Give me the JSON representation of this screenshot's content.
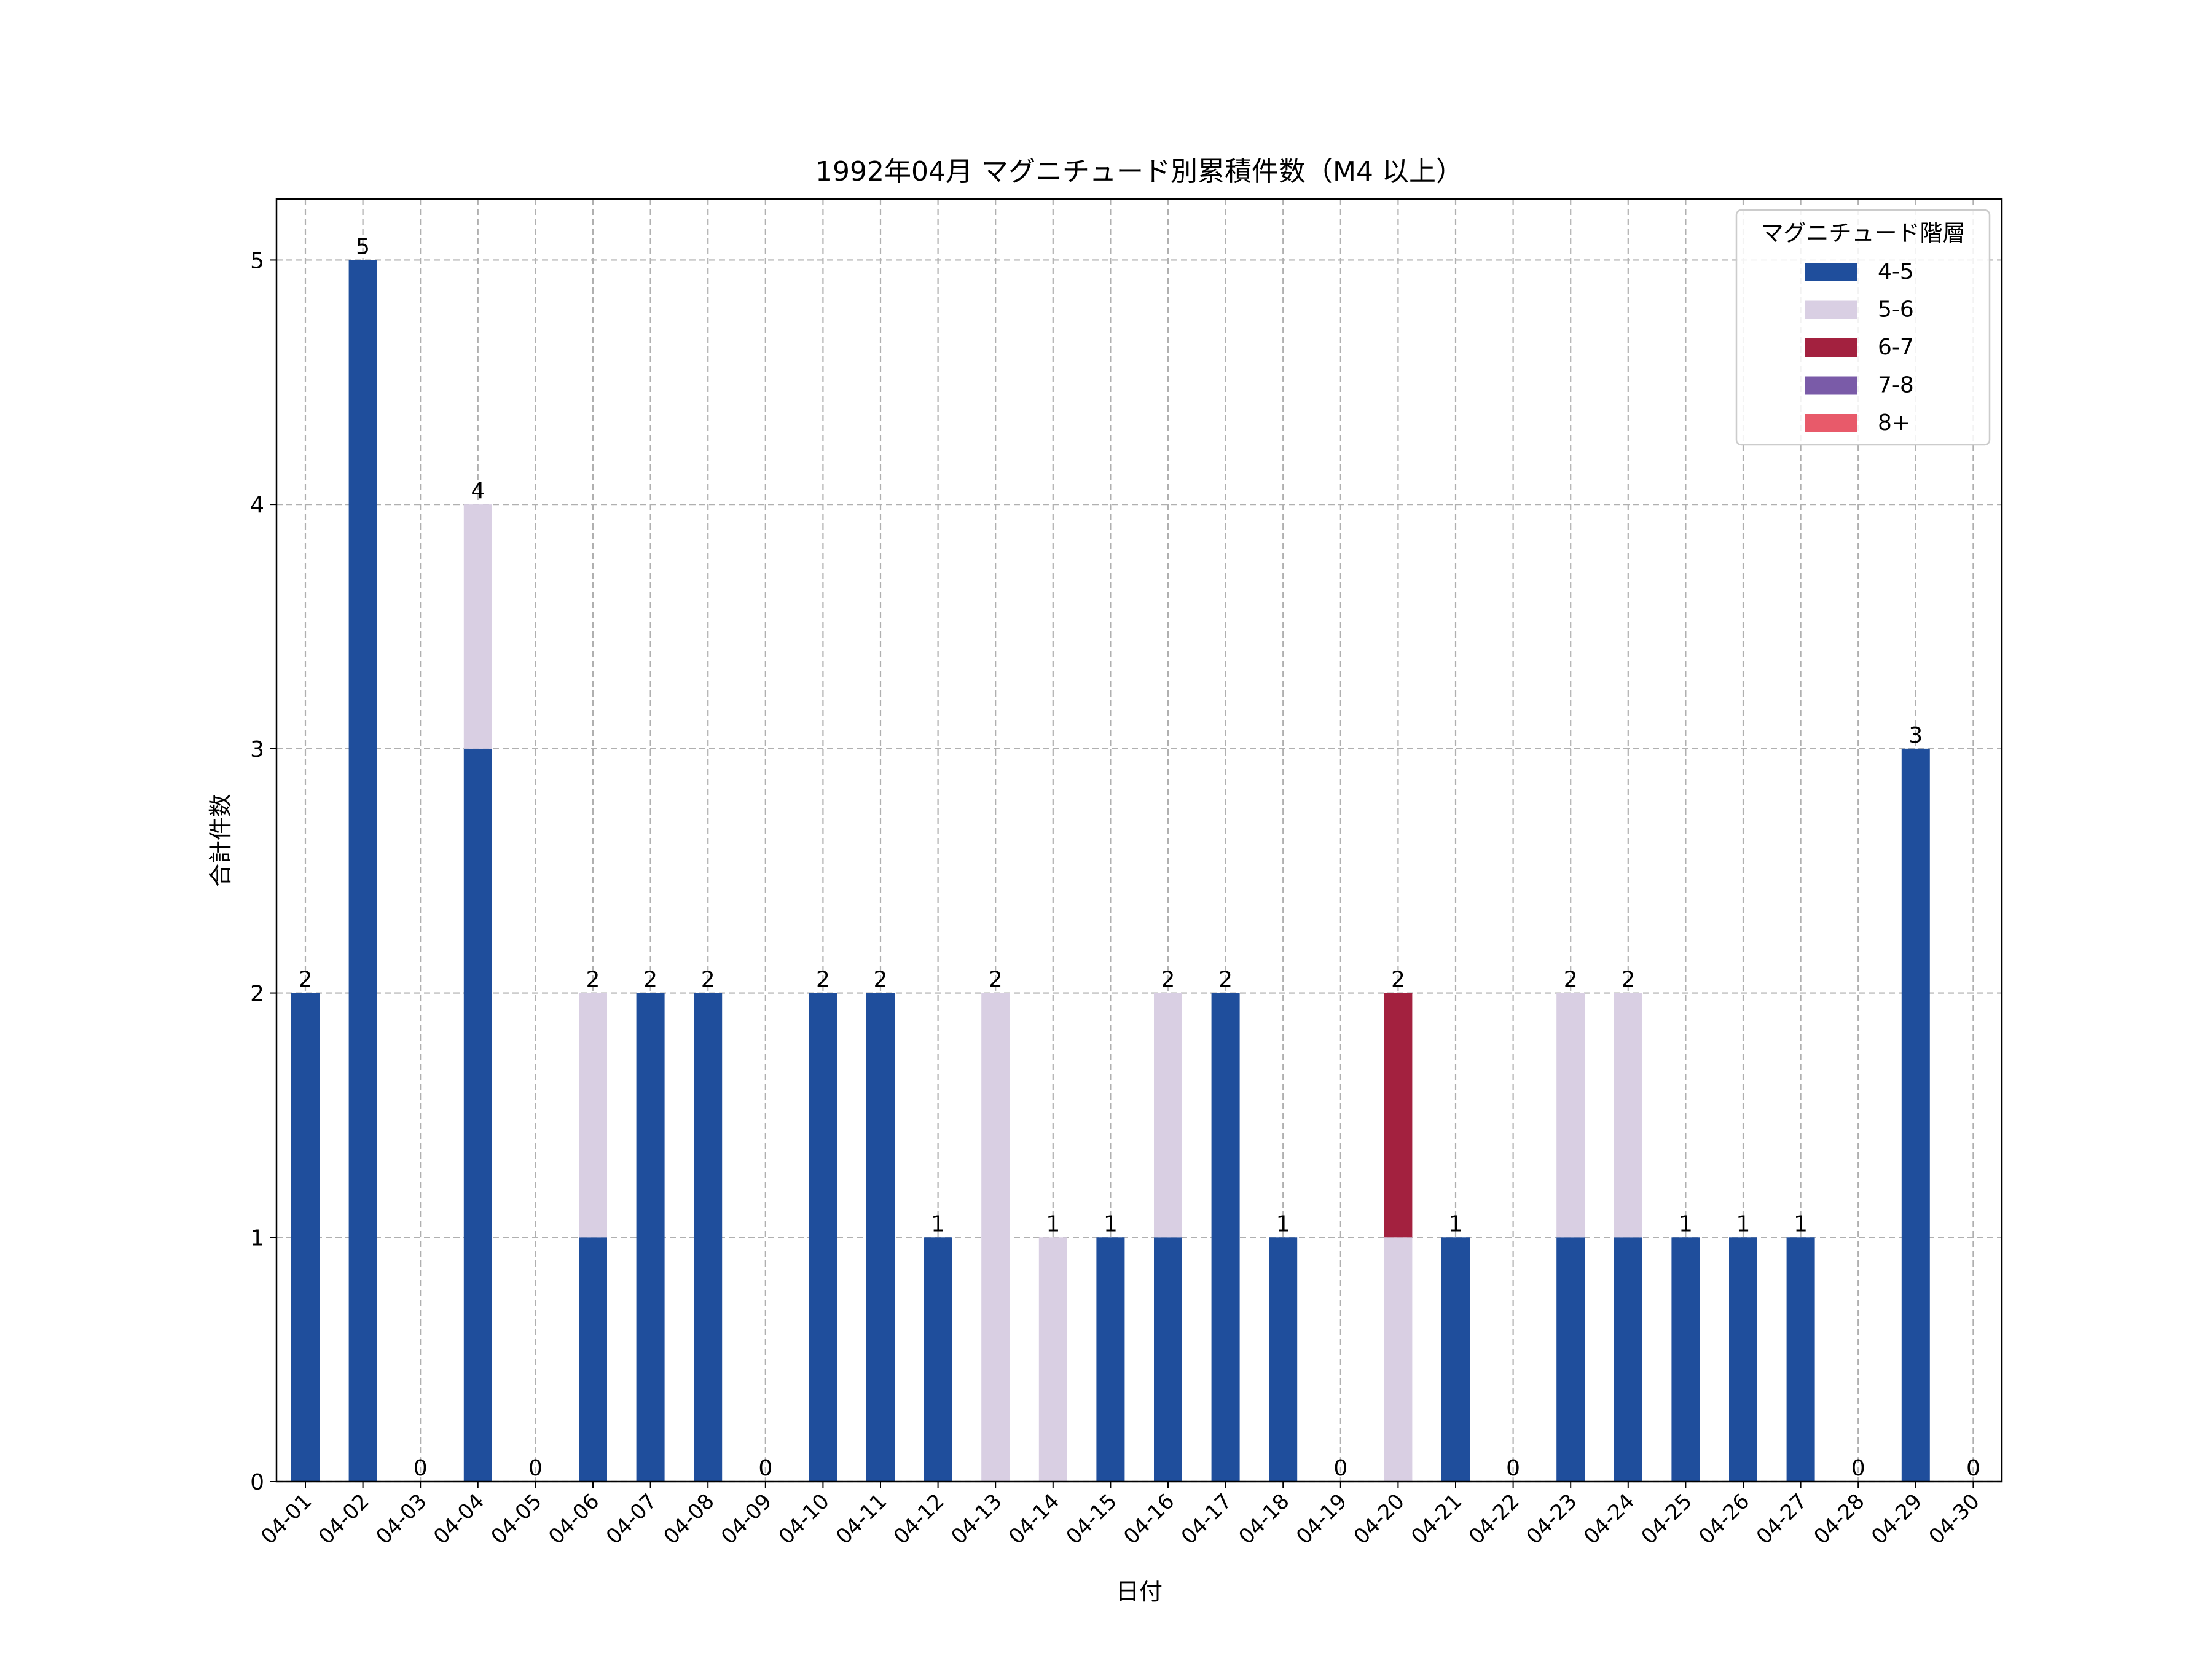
{
  "chart_data": {
    "type": "bar",
    "stacked": true,
    "title": "1992年04月 マグニチュード別累積件数（M4 以上）",
    "xlabel": "日付",
    "ylabel": "合計件数",
    "ylim": [
      0,
      5.25
    ],
    "yticks": [
      0,
      1,
      2,
      3,
      4,
      5
    ],
    "grid": true,
    "legend": {
      "title": "マグニチュード階層",
      "position": "top-right"
    },
    "categories": [
      "04-01",
      "04-02",
      "04-03",
      "04-04",
      "04-05",
      "04-06",
      "04-07",
      "04-08",
      "04-09",
      "04-10",
      "04-11",
      "04-12",
      "04-13",
      "04-14",
      "04-15",
      "04-16",
      "04-17",
      "04-18",
      "04-19",
      "04-20",
      "04-21",
      "04-22",
      "04-23",
      "04-24",
      "04-25",
      "04-26",
      "04-27",
      "04-28",
      "04-29",
      "04-30"
    ],
    "series": [
      {
        "name": "4-5",
        "color": "#1f4e9c",
        "values": [
          2,
          5,
          0,
          3,
          0,
          1,
          2,
          2,
          0,
          2,
          2,
          1,
          0,
          0,
          1,
          1,
          2,
          1,
          0,
          0,
          1,
          0,
          1,
          1,
          1,
          1,
          1,
          0,
          3,
          0
        ]
      },
      {
        "name": "5-6",
        "color": "#d9cfe3",
        "values": [
          0,
          0,
          0,
          1,
          0,
          1,
          0,
          0,
          0,
          0,
          0,
          0,
          2,
          1,
          0,
          1,
          0,
          0,
          0,
          1,
          0,
          0,
          1,
          1,
          0,
          0,
          0,
          0,
          0,
          0
        ]
      },
      {
        "name": "6-7",
        "color": "#a3213f",
        "values": [
          0,
          0,
          0,
          0,
          0,
          0,
          0,
          0,
          0,
          0,
          0,
          0,
          0,
          0,
          0,
          0,
          0,
          0,
          0,
          1,
          0,
          0,
          0,
          0,
          0,
          0,
          0,
          0,
          0,
          0
        ]
      },
      {
        "name": "7-8",
        "color": "#7a5ba8",
        "values": [
          0,
          0,
          0,
          0,
          0,
          0,
          0,
          0,
          0,
          0,
          0,
          0,
          0,
          0,
          0,
          0,
          0,
          0,
          0,
          0,
          0,
          0,
          0,
          0,
          0,
          0,
          0,
          0,
          0,
          0
        ]
      },
      {
        "name": "8+",
        "color": "#e85a6a",
        "values": [
          0,
          0,
          0,
          0,
          0,
          0,
          0,
          0,
          0,
          0,
          0,
          0,
          0,
          0,
          0,
          0,
          0,
          0,
          0,
          0,
          0,
          0,
          0,
          0,
          0,
          0,
          0,
          0,
          0,
          0
        ]
      }
    ],
    "totals": [
      2,
      5,
      0,
      4,
      0,
      2,
      2,
      2,
      0,
      2,
      2,
      1,
      2,
      1,
      1,
      2,
      2,
      1,
      0,
      2,
      1,
      0,
      2,
      2,
      1,
      1,
      1,
      0,
      3,
      0
    ]
  }
}
